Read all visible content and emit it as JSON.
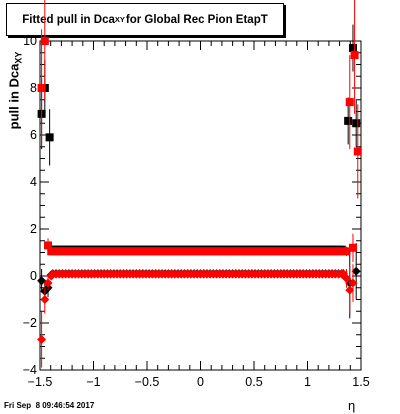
{
  "title": {
    "prefix": "Fitted pull in Dca",
    "subscript": "XY",
    "suffix": " for Global Rec Pion EtapT"
  },
  "y_axis_label": {
    "main": "pull in Dca",
    "subscript": "XY"
  },
  "x_axis_label": "η",
  "timestamp": "Fri Sep  8 09:46:54 2017",
  "colors": {
    "series_black": "#000000",
    "series_red": "#ff0000",
    "axis": "#000000"
  },
  "chart_data": {
    "type": "scatter",
    "xlim": [
      -1.5,
      1.5
    ],
    "ylim": [
      -4,
      10
    ],
    "x_ticks": [
      -1.5,
      -1,
      -0.5,
      0,
      0.5,
      1,
      1.5
    ],
    "x_tick_labels": [
      "−1.5",
      "−1",
      "−0.5",
      "0",
      "0.5",
      "1",
      "1.5"
    ],
    "y_ticks": [
      -4,
      -2,
      0,
      2,
      4,
      6,
      8,
      10
    ],
    "y_tick_labels": [
      "−4",
      "−2",
      "0",
      "2",
      "4",
      "6",
      "8",
      "10"
    ],
    "grid": false,
    "legend": "none",
    "series": [
      {
        "color": "#000000",
        "mean_points": [
          {
            "x": -1.485,
            "y": -0.2,
            "err": 0.5
          },
          {
            "x": -1.455,
            "y": -0.65,
            "err": 0.5
          },
          {
            "x": -1.425,
            "y": -0.5,
            "err": 0.4
          },
          {
            "x": -1.395,
            "y": 0.05,
            "err": 0.15
          },
          {
            "x": 1.335,
            "y": 0.05,
            "err": 0.2
          },
          {
            "x": 1.365,
            "y": -0.1,
            "err": 0.3
          },
          {
            "x": 1.395,
            "y": -0.3,
            "err": 1.5
          },
          {
            "x": 1.455,
            "y": 0.2,
            "err": 1.2
          }
        ],
        "mean_band": {
          "x_from": -1.38,
          "x_to": 1.32,
          "step": 0.03,
          "y": 0.1
        },
        "width_points": [
          {
            "x": -1.485,
            "y": 6.9,
            "err": 1.5
          },
          {
            "x": -1.455,
            "y": 8.0,
            "err": 1.2
          },
          {
            "x": -1.41,
            "y": 5.9,
            "err": 1.2
          },
          {
            "x": 1.38,
            "y": 6.6,
            "err": 1.0
          },
          {
            "x": 1.425,
            "y": 9.7,
            "err": 1.0
          },
          {
            "x": 1.455,
            "y": 6.5,
            "err": 1.0
          }
        ],
        "width_band": {
          "x_from": -1.38,
          "x_to": 1.32,
          "step": 0.03,
          "y": 1.12
        }
      },
      {
        "color": "#ff0000",
        "mean_points": [
          {
            "x": -1.485,
            "y": -2.7,
            "err": 1.2
          },
          {
            "x": -1.455,
            "y": -1.0,
            "err": 0.6
          },
          {
            "x": -1.425,
            "y": -0.3,
            "err": 0.3
          },
          {
            "x": -1.395,
            "y": 0.0,
            "err": 0.15
          },
          {
            "x": 1.335,
            "y": 0.1,
            "err": 0.2
          },
          {
            "x": 1.365,
            "y": -0.1,
            "err": 0.4
          },
          {
            "x": 1.395,
            "y": -0.6,
            "err": 1.0
          },
          {
            "x": 1.425,
            "y": -0.3,
            "err": 0.8
          }
        ],
        "mean_band": {
          "x_from": -1.38,
          "x_to": 1.32,
          "step": 0.03,
          "y": 0.08
        },
        "width_points": [
          {
            "x": -1.485,
            "y": 8.0,
            "err": 2.5
          },
          {
            "x": -1.455,
            "y": 10.0,
            "err": 2.5
          },
          {
            "x": -1.425,
            "y": 1.3,
            "err": 0.3
          },
          {
            "x": -1.395,
            "y": 1.05,
            "err": 0.15
          },
          {
            "x": 1.365,
            "y": 1.05,
            "err": 0.2
          },
          {
            "x": 1.395,
            "y": 7.4,
            "err": 2.0
          },
          {
            "x": 1.425,
            "y": 1.2,
            "err": 0.6
          },
          {
            "x": 1.44,
            "y": 9.4,
            "err": 2.5
          },
          {
            "x": 1.47,
            "y": 5.3,
            "err": 2.0
          }
        ],
        "width_band": {
          "x_from": -1.38,
          "x_to": 1.32,
          "step": 0.03,
          "y": 1.05
        }
      }
    ]
  }
}
